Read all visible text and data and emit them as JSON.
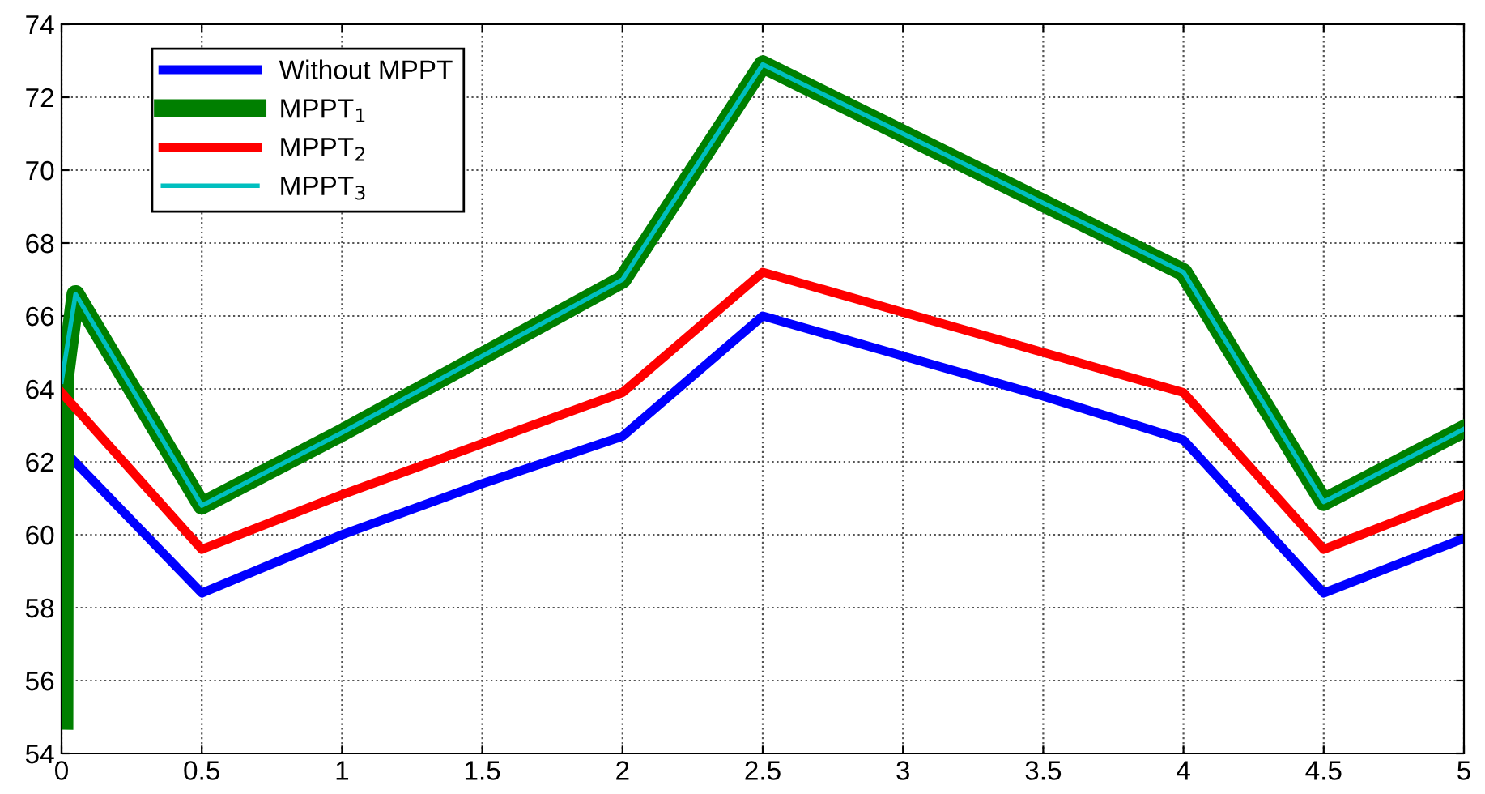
{
  "chart_data": {
    "type": "line",
    "xlim": [
      0,
      5
    ],
    "ylim": [
      54,
      74
    ],
    "xticks": [
      0,
      0.5,
      1,
      1.5,
      2,
      2.5,
      3,
      3.5,
      4,
      4.5,
      5
    ],
    "yticks": [
      54,
      56,
      58,
      60,
      62,
      64,
      66,
      68,
      70,
      72,
      74
    ],
    "grid": true,
    "legend": "top left",
    "line_style": "solid",
    "marker": "none",
    "series": [
      {
        "name": "Without MPPT",
        "color": "#0000ff",
        "x": [
          0.01,
          0.5,
          1,
          1.5,
          2,
          2.5,
          3,
          3.5,
          4,
          4.5,
          5
        ],
        "values": [
          62.3,
          58.4,
          60.0,
          61.4,
          62.7,
          66.0,
          64.9,
          63.8,
          62.6,
          58.4,
          59.9
        ]
      },
      {
        "name": "MPPT$_{1}$",
        "color": "#007f00",
        "x": [
          0.01,
          0.012,
          0.05,
          0.5,
          1,
          1.5,
          2,
          2.5,
          3,
          3.5,
          4,
          4.5,
          5
        ],
        "values": [
          54.9,
          64.3,
          66.6,
          60.8,
          62.8,
          64.9,
          67.0,
          72.9,
          71.0,
          69.1,
          67.2,
          60.9,
          62.9
        ]
      },
      {
        "name": "MPPT$_{2}$",
        "color": "#ff0000",
        "x": [
          0,
          0.5,
          1,
          1.5,
          2,
          2.5,
          3,
          3.5,
          4,
          4.5,
          5
        ],
        "values": [
          63.9,
          59.6,
          61.1,
          62.5,
          63.9,
          67.2,
          66.1,
          65.0,
          63.9,
          59.6,
          61.1
        ]
      },
      {
        "name": "MPPT$_{3}$",
        "color": "#00bfbf",
        "x": [
          0,
          0.05,
          0.5,
          1,
          1.5,
          2,
          2.5,
          3,
          3.5,
          4,
          4.5,
          5
        ],
        "values": [
          64.2,
          66.6,
          60.8,
          62.8,
          64.9,
          67.0,
          72.9,
          71.0,
          69.1,
          67.2,
          60.9,
          62.9
        ]
      }
    ]
  }
}
